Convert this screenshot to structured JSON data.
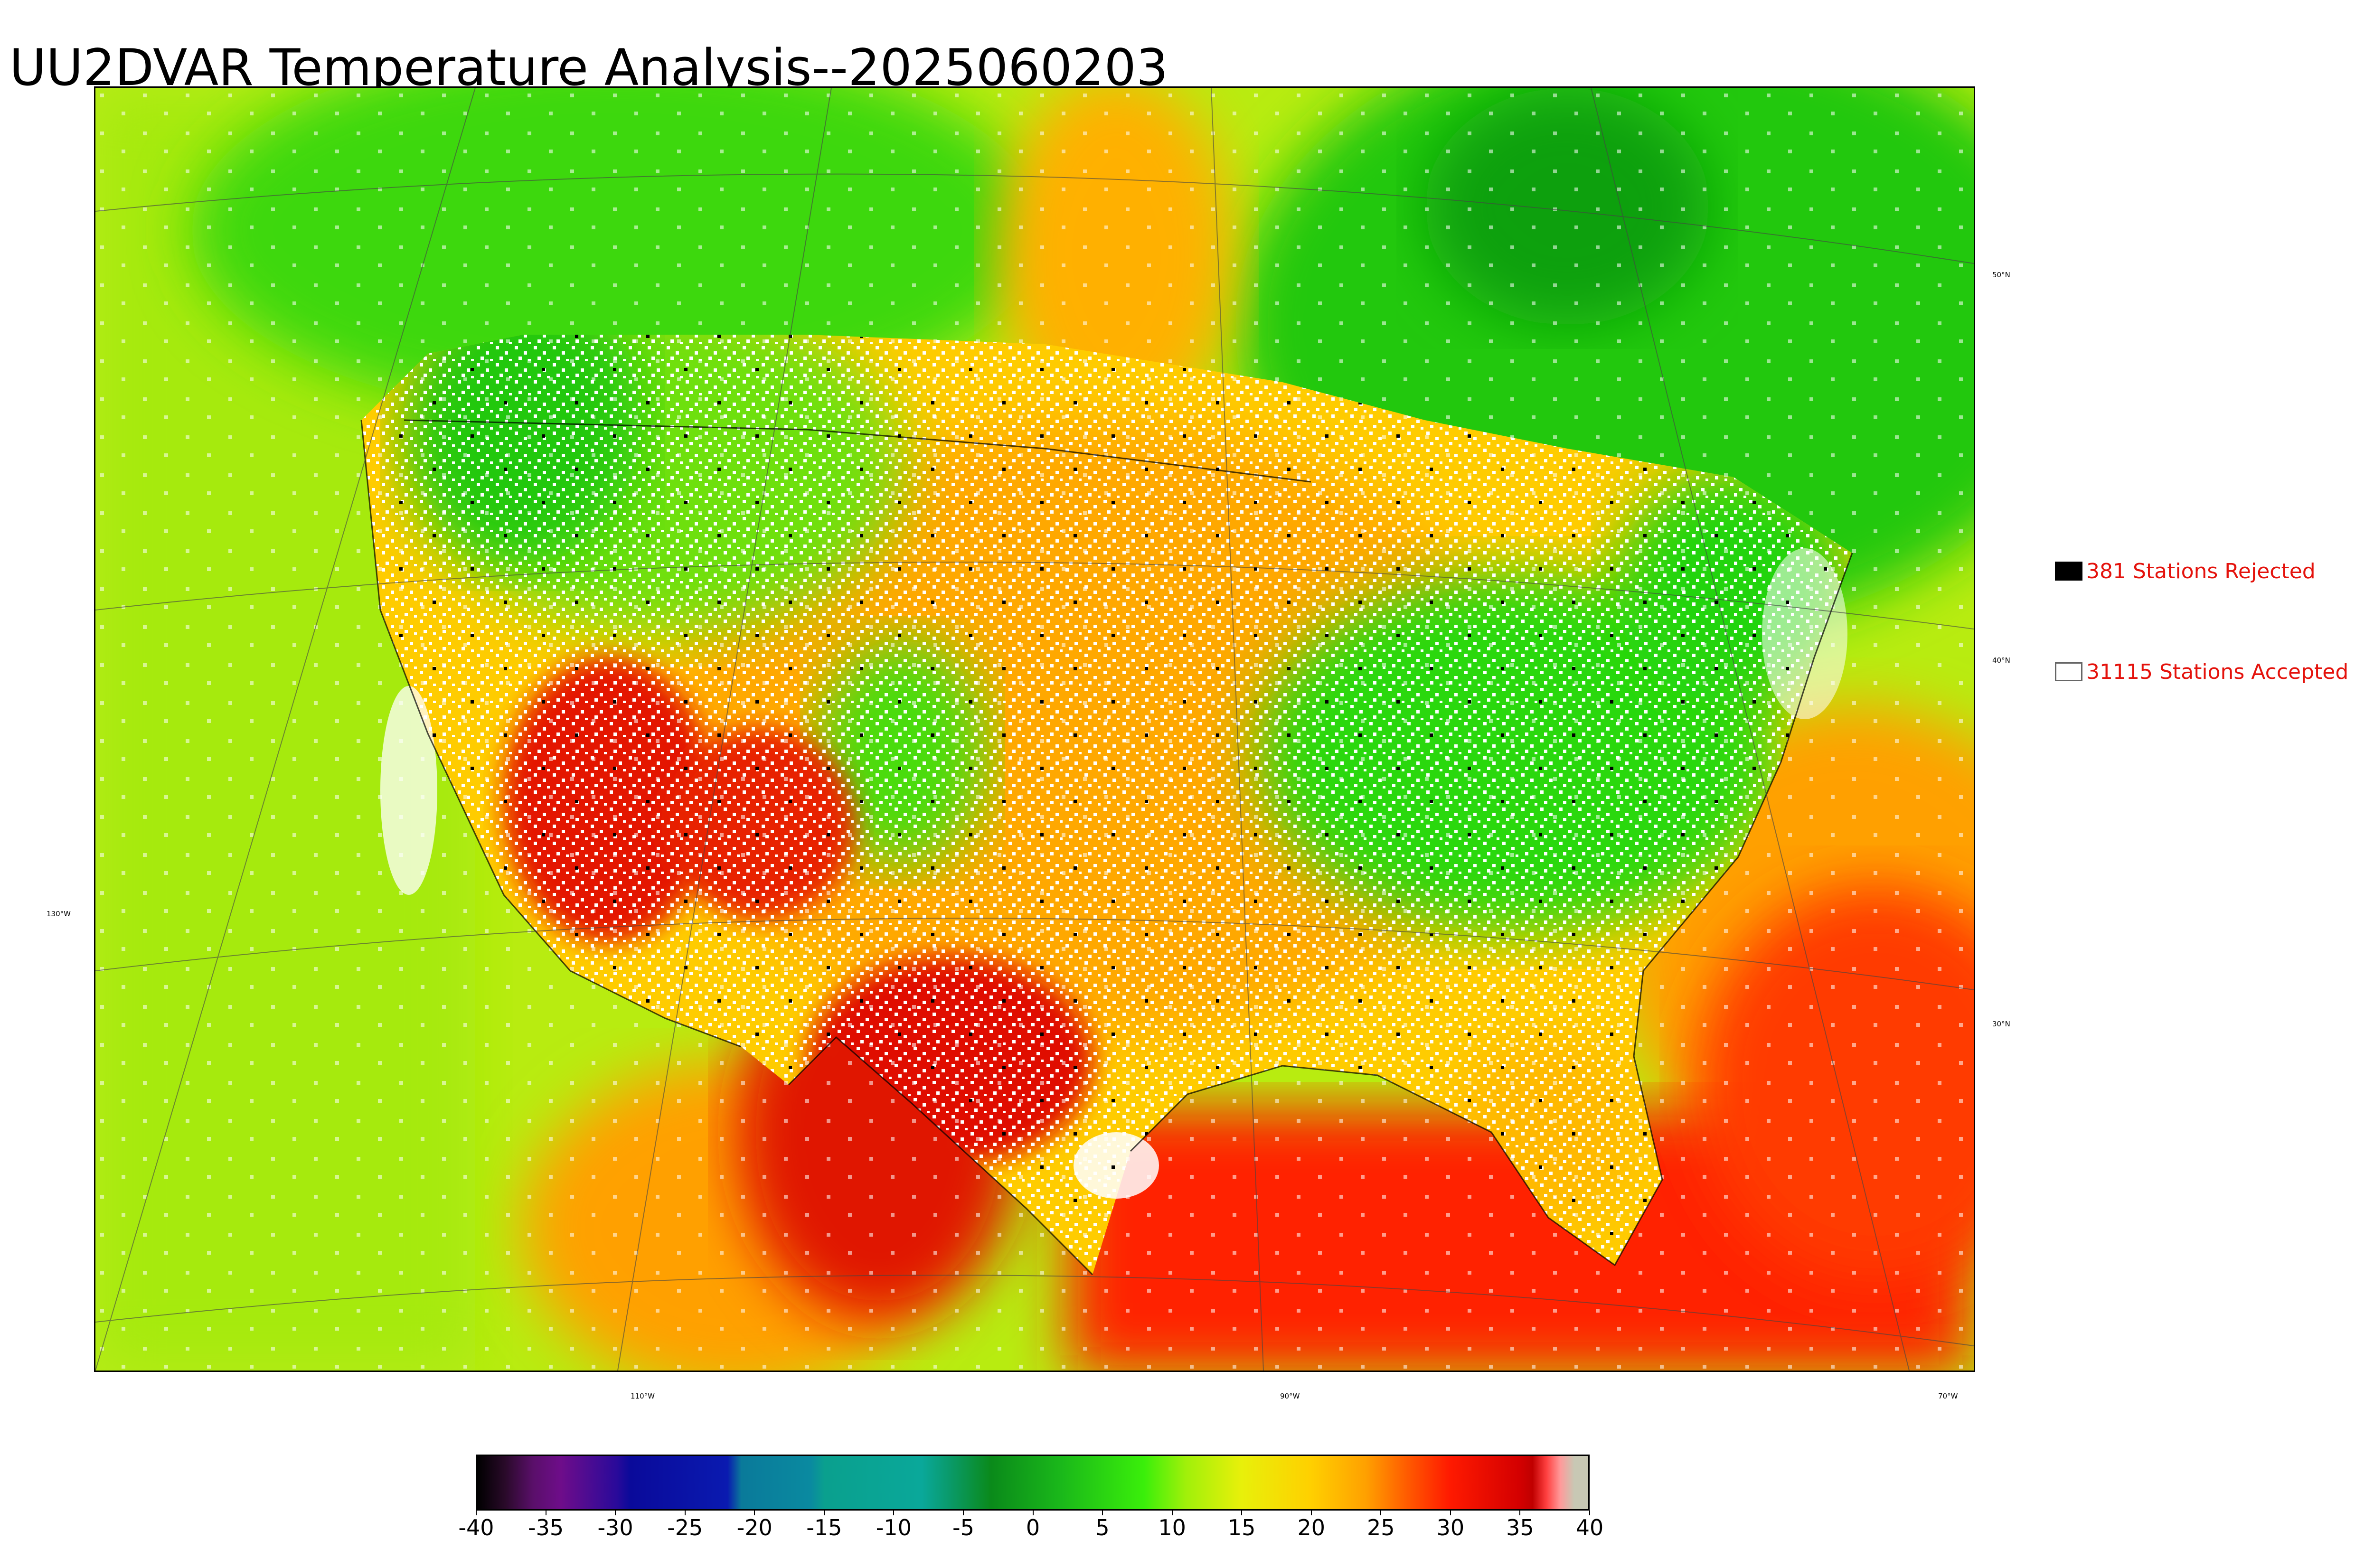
{
  "title": "UU2DVAR Temperature Analysis--2025060203",
  "map": {
    "longitude_labels": [
      "130°W",
      "110°W",
      "90°W",
      "70°W"
    ],
    "latitude_labels": [
      "50°N",
      "40°N",
      "30°N"
    ]
  },
  "legend": {
    "rejected": {
      "label": "381 Stations Rejected",
      "count": 381,
      "color": "#000000"
    },
    "accepted": {
      "label": "31115 Stations Accepted",
      "count": 31115,
      "color": "#ffffff"
    }
  },
  "colorbar": {
    "min": -40,
    "max": 40,
    "tick_labels": [
      "-40",
      "-35",
      "-30",
      "-25",
      "-20",
      "-15",
      "-10",
      "-5",
      "0",
      "5",
      "10",
      "15",
      "20",
      "25",
      "30",
      "35",
      "40"
    ],
    "stops": [
      {
        "value": -40,
        "color": "#000000"
      },
      {
        "value": -38,
        "color": "#2a0a2a"
      },
      {
        "value": -36,
        "color": "#5a0f6a"
      },
      {
        "value": -34,
        "color": "#6e0d8a"
      },
      {
        "value": -30,
        "color": "#2a0a9a"
      },
      {
        "value": -29,
        "color": "#0a0a9a"
      },
      {
        "value": -22,
        "color": "#0a1ab0"
      },
      {
        "value": -21,
        "color": "#0a7a9a"
      },
      {
        "value": -16,
        "color": "#0a8aa0"
      },
      {
        "value": -15,
        "color": "#0aa08e"
      },
      {
        "value": -8,
        "color": "#0aa89a"
      },
      {
        "value": -6,
        "color": "#0a9a6a"
      },
      {
        "value": -3,
        "color": "#0a8a1a"
      },
      {
        "value": 2,
        "color": "#1ab81a"
      },
      {
        "value": 8,
        "color": "#3aef0a"
      },
      {
        "value": 11,
        "color": "#a0f00a"
      },
      {
        "value": 15,
        "color": "#e8f00a"
      },
      {
        "value": 20,
        "color": "#ffd000"
      },
      {
        "value": 24,
        "color": "#ffa000"
      },
      {
        "value": 27,
        "color": "#ff5a00"
      },
      {
        "value": 30,
        "color": "#ff1a00"
      },
      {
        "value": 35,
        "color": "#d40000"
      },
      {
        "value": 36,
        "color": "#c00000"
      },
      {
        "value": 37,
        "color": "#ff4040"
      },
      {
        "value": 38,
        "color": "#ff9a9a"
      },
      {
        "value": 39,
        "color": "#c8c8b4"
      },
      {
        "value": 40,
        "color": "#c8c8b4"
      }
    ]
  },
  "colors": {
    "legend_text": "#e4120c",
    "ocean_west": "#c8ee10",
    "ocean_gulf": "#ff2000",
    "canada": "#2ad80a"
  }
}
